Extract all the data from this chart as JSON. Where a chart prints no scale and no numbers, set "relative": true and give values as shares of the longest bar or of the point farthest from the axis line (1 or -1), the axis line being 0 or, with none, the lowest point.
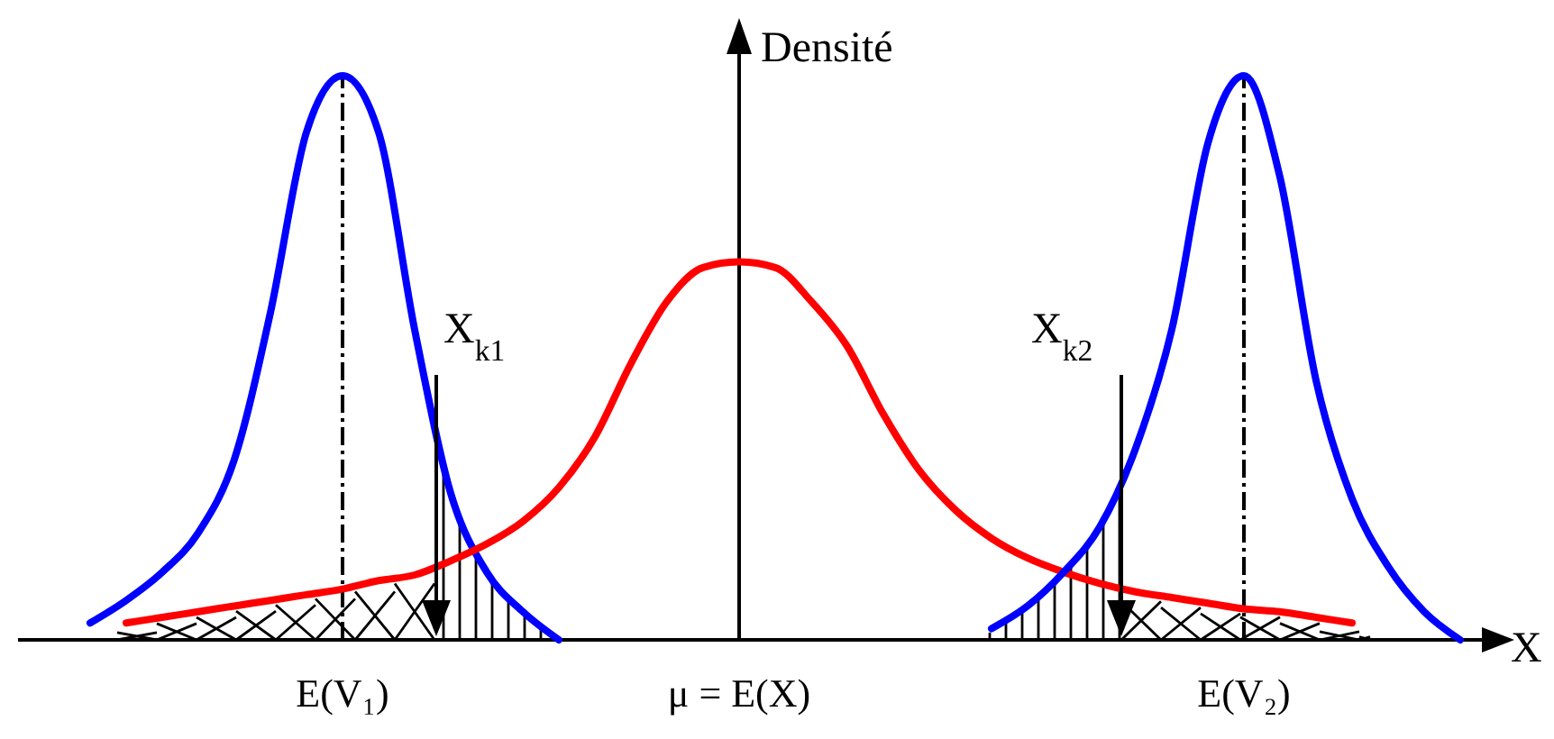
{
  "chart_data": {
    "type": "line",
    "relative": true,
    "xlabel": "X",
    "ylabel": "Densité",
    "categories": [
      null,
      null,
      null,
      null,
      null,
      null,
      null,
      null,
      "E(V₁)",
      null,
      null,
      null,
      null,
      null,
      null,
      null,
      null,
      null,
      null,
      "μ = E(X)",
      null,
      null,
      null,
      null,
      null,
      null,
      null,
      null,
      null,
      null,
      null,
      null,
      null,
      "E(V₂)",
      null,
      null,
      null,
      null,
      null,
      null
    ],
    "series": [
      {
        "color": "#0000ff",
        "values": [
          null,
          0.03,
          0.07,
          0.12,
          0.19,
          0.32,
          0.58,
          0.9,
          1,
          0.9,
          0.55,
          0.26,
          0.12,
          0.05,
          0,
          null,
          null,
          null,
          null,
          null,
          null,
          null,
          null,
          null,
          null,
          null,
          null,
          null,
          null,
          null,
          null,
          null,
          null,
          null,
          null,
          null,
          null,
          null,
          null,
          null
        ]
      },
      {
        "color": "#ff0000",
        "values": [
          null,
          null,
          0.03,
          0.04,
          0.05,
          0.06,
          0.07,
          0.08,
          0.09,
          0.105,
          0.115,
          0.14,
          0.17,
          0.21,
          0.27,
          0.36,
          0.49,
          0.6,
          0.66,
          0.67,
          0.66,
          0.6,
          0.52,
          0.4,
          0.3,
          0.23,
          0.18,
          0.145,
          0.12,
          0.1,
          0.085,
          0.075,
          0.065,
          0.055,
          0.05,
          0.04,
          0.03,
          null,
          null,
          null
        ]
      },
      {
        "color": "#0000ff",
        "values": [
          null,
          null,
          null,
          null,
          null,
          null,
          null,
          null,
          null,
          null,
          null,
          null,
          null,
          null,
          null,
          null,
          null,
          null,
          null,
          null,
          null,
          null,
          null,
          null,
          null,
          null,
          0.02,
          0.06,
          0.12,
          0.2,
          0.34,
          0.55,
          0.88,
          1,
          0.82,
          0.46,
          0.25,
          0.13,
          0.05,
          0
        ]
      }
    ],
    "ref_lines": [
      {
        "axis": "x",
        "value": "E(V₁)",
        "line_style": "dashed",
        "color": "#000000"
      },
      {
        "axis": "x",
        "value": "E(V₂)",
        "line_style": "dashed",
        "color": "#000000"
      }
    ],
    "annotations": [
      "X$_{k1}$",
      "X$_{k2}$"
    ],
    "line_style": "solid"
  }
}
